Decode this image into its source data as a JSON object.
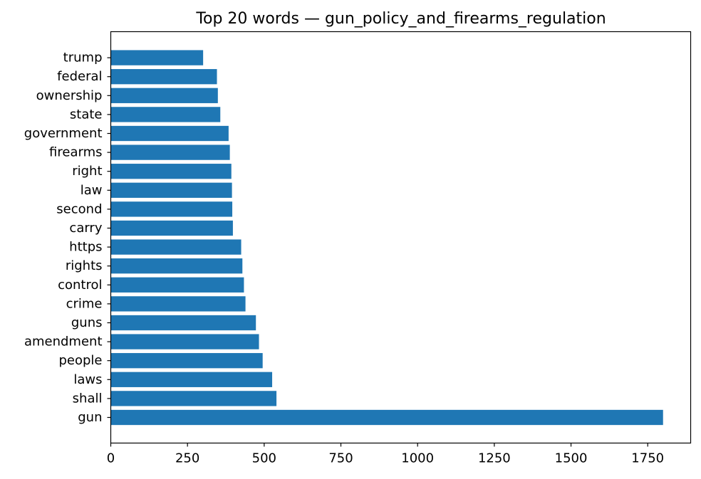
{
  "chart_data": {
    "type": "bar",
    "orientation": "horizontal",
    "title": "Top 20 words — gun_policy_and_firearms_regulation",
    "xlabel": "",
    "ylabel": "",
    "categories": [
      "gun",
      "shall",
      "laws",
      "people",
      "amendment",
      "guns",
      "crime",
      "control",
      "rights",
      "https",
      "carry",
      "second",
      "law",
      "right",
      "firearms",
      "government",
      "state",
      "ownership",
      "federal",
      "trump"
    ],
    "values": [
      1800,
      540,
      526,
      495,
      483,
      473,
      439,
      434,
      429,
      425,
      398,
      396,
      395,
      393,
      388,
      384,
      357,
      349,
      346,
      301
    ],
    "xlim": [
      0,
      1890
    ],
    "xticks": [
      0,
      250,
      500,
      750,
      1000,
      1250,
      1500,
      1750
    ],
    "xtick_labels": [
      "0",
      "250",
      "500",
      "750",
      "1000",
      "1250",
      "1500",
      "1750"
    ],
    "grid": false,
    "legend": "none",
    "bar_color": "#1f77b4"
  }
}
